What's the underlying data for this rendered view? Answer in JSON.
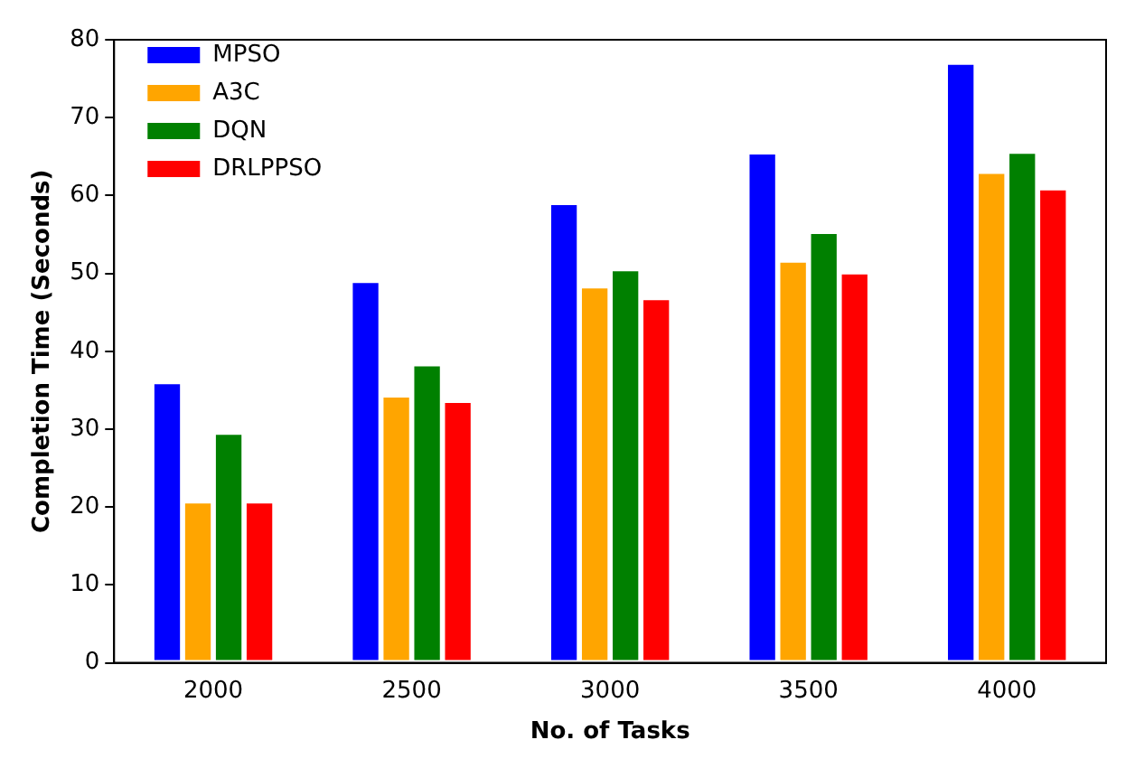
{
  "chart_data": {
    "type": "bar",
    "xlabel": "No. of Tasks",
    "ylabel": "Completion Time (Seconds)",
    "categories": [
      "2000",
      "2500",
      "3000",
      "3500",
      "4000"
    ],
    "series": [
      {
        "name": "MPSO",
        "color": "#0000ff",
        "values": [
          36,
          49,
          59,
          65.5,
          77
        ]
      },
      {
        "name": "A3C",
        "color": "#ffa500",
        "values": [
          20.7,
          34.3,
          48.3,
          51.6,
          63
        ]
      },
      {
        "name": "DQN",
        "color": "#008000",
        "values": [
          29.5,
          38.3,
          50.5,
          55.3,
          65.6
        ]
      },
      {
        "name": "DRLPPSO",
        "color": "#ff0000",
        "values": [
          20.7,
          33.6,
          46.8,
          50.1,
          60.9
        ]
      }
    ],
    "ylim": [
      0,
      80
    ],
    "yticks": [
      0,
      10,
      20,
      30,
      40,
      50,
      60,
      70,
      80
    ],
    "grid": false,
    "legend": "top left"
  }
}
